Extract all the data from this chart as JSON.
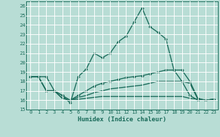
{
  "xlabel": "Humidex (Indice chaleur)",
  "ylabel": "",
  "xlim": [
    -0.5,
    23.5
  ],
  "ylim": [
    15,
    26.5
  ],
  "yticks": [
    15,
    16,
    17,
    18,
    19,
    20,
    21,
    22,
    23,
    24,
    25,
    26
  ],
  "xticks": [
    0,
    1,
    2,
    3,
    4,
    5,
    6,
    7,
    8,
    9,
    10,
    11,
    12,
    13,
    14,
    15,
    16,
    17,
    18,
    19,
    20,
    21,
    22,
    23
  ],
  "bg_color": "#b8ddd5",
  "line_color": "#1a6b5a",
  "grid_color": "#ffffff",
  "lines": [
    {
      "x": [
        0,
        1,
        2,
        3,
        4,
        5,
        6,
        7,
        8,
        9,
        10,
        11,
        12,
        13,
        14,
        15,
        16,
        17,
        18,
        19,
        20,
        21,
        22,
        23
      ],
      "y": [
        18.5,
        18.5,
        18.5,
        17.0,
        16.5,
        15.7,
        18.5,
        19.3,
        21.0,
        20.5,
        21.0,
        22.2,
        22.8,
        24.3,
        25.8,
        23.8,
        23.2,
        22.5,
        19.2,
        18.0,
        16.5,
        16.0,
        16.0,
        16.1
      ],
      "marker": "D",
      "markersize": 2.0,
      "linewidth": 1.0
    },
    {
      "x": [
        0,
        1,
        2,
        3,
        4,
        5,
        6,
        7,
        8,
        9,
        10,
        11,
        12,
        13,
        14,
        15,
        16,
        17,
        18,
        19,
        20,
        21,
        22,
        23
      ],
      "y": [
        18.5,
        18.5,
        17.0,
        17.0,
        16.5,
        16.0,
        16.5,
        17.0,
        17.5,
        17.8,
        18.0,
        18.2,
        18.4,
        18.5,
        18.6,
        18.8,
        19.0,
        19.2,
        19.2,
        19.2,
        18.0,
        16.2,
        16.0,
        16.1
      ],
      "marker": "D",
      "markersize": 2.0,
      "linewidth": 1.0
    },
    {
      "x": [
        0,
        1,
        2,
        3,
        4,
        5,
        6,
        7,
        8,
        9,
        10,
        11,
        12,
        13,
        14,
        15,
        16,
        17,
        18,
        19,
        20,
        21,
        22,
        23
      ],
      "y": [
        18.5,
        18.5,
        17.0,
        17.0,
        16.2,
        16.0,
        16.3,
        16.5,
        16.8,
        17.0,
        17.2,
        17.3,
        17.4,
        17.5,
        17.6,
        17.8,
        18.0,
        18.0,
        18.0,
        18.0,
        17.8,
        16.1,
        16.0,
        16.1
      ],
      "marker": null,
      "markersize": 0,
      "linewidth": 1.0
    },
    {
      "x": [
        0,
        1,
        2,
        3,
        4,
        5,
        6,
        7,
        8,
        9,
        10,
        11,
        12,
        13,
        14,
        15,
        16,
        17,
        18,
        19,
        20,
        21,
        22,
        23
      ],
      "y": [
        18.5,
        18.5,
        17.0,
        17.0,
        16.2,
        16.0,
        16.1,
        16.2,
        16.3,
        16.4,
        16.4,
        16.4,
        16.4,
        16.4,
        16.4,
        16.4,
        16.4,
        16.4,
        16.4,
        16.4,
        16.2,
        16.1,
        16.0,
        16.1
      ],
      "marker": null,
      "markersize": 0,
      "linewidth": 1.0
    }
  ]
}
